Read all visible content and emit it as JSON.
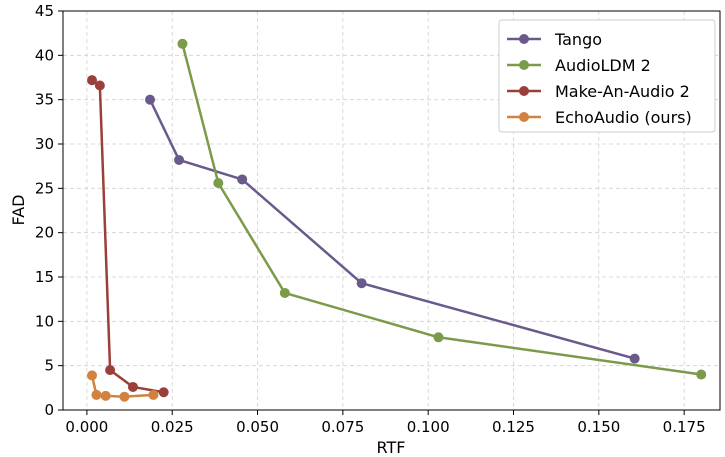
{
  "chart_data": {
    "type": "line",
    "xlabel": "RTF",
    "ylabel": "FAD",
    "xlim": [
      -0.007,
      0.1855
    ],
    "ylim": [
      0,
      45
    ],
    "x_ticks": [
      0.0,
      0.025,
      0.05,
      0.075,
      0.1,
      0.125,
      0.15,
      0.175
    ],
    "x_tick_labels": [
      "0.000",
      "0.025",
      "0.050",
      "0.075",
      "0.100",
      "0.125",
      "0.150",
      "0.175"
    ],
    "y_ticks": [
      0,
      5,
      10,
      15,
      20,
      25,
      30,
      35,
      40,
      45
    ],
    "y_tick_labels": [
      "0",
      "5",
      "10",
      "15",
      "20",
      "25",
      "30",
      "35",
      "40",
      "45"
    ],
    "grid": true,
    "legend_position": "top-right",
    "series": [
      {
        "name": "Tango",
        "color": "#6a5a8c",
        "points": [
          [
            0.0185,
            35.0
          ],
          [
            0.027,
            28.2
          ],
          [
            0.0455,
            26.0
          ],
          [
            0.0805,
            14.3
          ],
          [
            0.1605,
            5.8
          ]
        ]
      },
      {
        "name": "AudioLDM 2",
        "color": "#7b9a4a",
        "points": [
          [
            0.028,
            41.3
          ],
          [
            0.0385,
            25.6
          ],
          [
            0.058,
            13.2
          ],
          [
            0.103,
            8.2
          ],
          [
            0.18,
            4.0
          ]
        ]
      },
      {
        "name": "Make-An-Audio 2",
        "color": "#9b3f3a",
        "points": [
          [
            0.0015,
            37.2
          ],
          [
            0.0038,
            36.6
          ],
          [
            0.0068,
            4.5
          ],
          [
            0.0135,
            2.6
          ],
          [
            0.0225,
            2.0
          ]
        ]
      },
      {
        "name": "EchoAudio (ours)",
        "color": "#d0823e",
        "points": [
          [
            0.0015,
            3.9
          ],
          [
            0.0028,
            1.7
          ],
          [
            0.0055,
            1.6
          ],
          [
            0.011,
            1.5
          ],
          [
            0.0195,
            1.7
          ]
        ]
      }
    ]
  }
}
